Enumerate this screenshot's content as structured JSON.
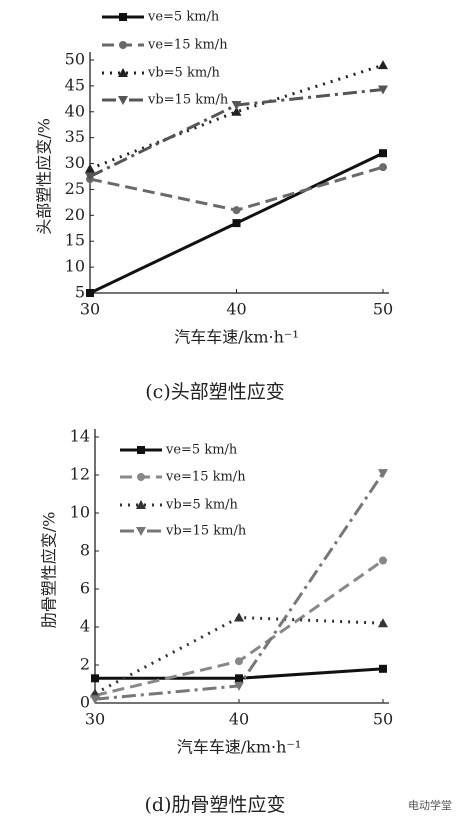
{
  "chart_data": [
    {
      "type": "line",
      "caption": "(c)头部塑性应变",
      "xlabel": "汽车车速/km·h⁻¹",
      "ylabel": "头部塑性应变/%",
      "x": [
        30,
        40,
        50
      ],
      "xlim": [
        30,
        50
      ],
      "xticks": [
        30,
        40,
        50
      ],
      "ylim": [
        5,
        50
      ],
      "yticks": [
        5,
        10,
        15,
        20,
        25,
        30,
        35,
        40,
        45,
        50
      ],
      "legend": "upper left",
      "series": [
        {
          "name": "ve=5 km/h",
          "color": "#111111",
          "linestyle": "solid",
          "marker": "square",
          "values": [
            5,
            18.5,
            32
          ]
        },
        {
          "name": "ve=15 km/h",
          "color": "#6a6a6a",
          "linestyle": "dashed",
          "marker": "circle",
          "values": [
            27,
            21,
            29.3
          ]
        },
        {
          "name": "vb=5 km/h",
          "color": "#222222",
          "linestyle": "dotted",
          "marker": "triangle",
          "values": [
            29,
            40,
            49
          ]
        },
        {
          "name": "vb=15 km/h",
          "color": "#555555",
          "linestyle": "dashdot",
          "marker": "triangle-down",
          "values": [
            27.5,
            41.3,
            44.3
          ]
        }
      ]
    },
    {
      "type": "line",
      "caption": "(d)肋骨塑性应变",
      "xlabel": "汽车车速/km·h⁻¹",
      "ylabel": "肋骨塑性应变/%",
      "x": [
        30,
        40,
        50
      ],
      "xlim": [
        30,
        50
      ],
      "xticks": [
        30,
        40,
        50
      ],
      "ylim": [
        0,
        14
      ],
      "yticks": [
        0,
        2,
        4,
        6,
        8,
        10,
        12,
        14
      ],
      "legend": "upper left",
      "series": [
        {
          "name": "ve=5 km/h",
          "color": "#111111",
          "linestyle": "solid",
          "marker": "square",
          "values": [
            1.3,
            1.3,
            1.8
          ]
        },
        {
          "name": "ve=15 km/h",
          "color": "#888888",
          "linestyle": "dashed",
          "marker": "circle",
          "values": [
            0.4,
            2.2,
            7.5
          ]
        },
        {
          "name": "vb=5 km/h",
          "color": "#333333",
          "linestyle": "dotted",
          "marker": "triangle",
          "values": [
            0.5,
            4.5,
            4.2
          ]
        },
        {
          "name": "vb=15 km/h",
          "color": "#777777",
          "linestyle": "dashdot",
          "marker": "triangle-down",
          "values": [
            0.2,
            0.9,
            12.1
          ]
        }
      ]
    }
  ],
  "watermark": "电动学堂"
}
